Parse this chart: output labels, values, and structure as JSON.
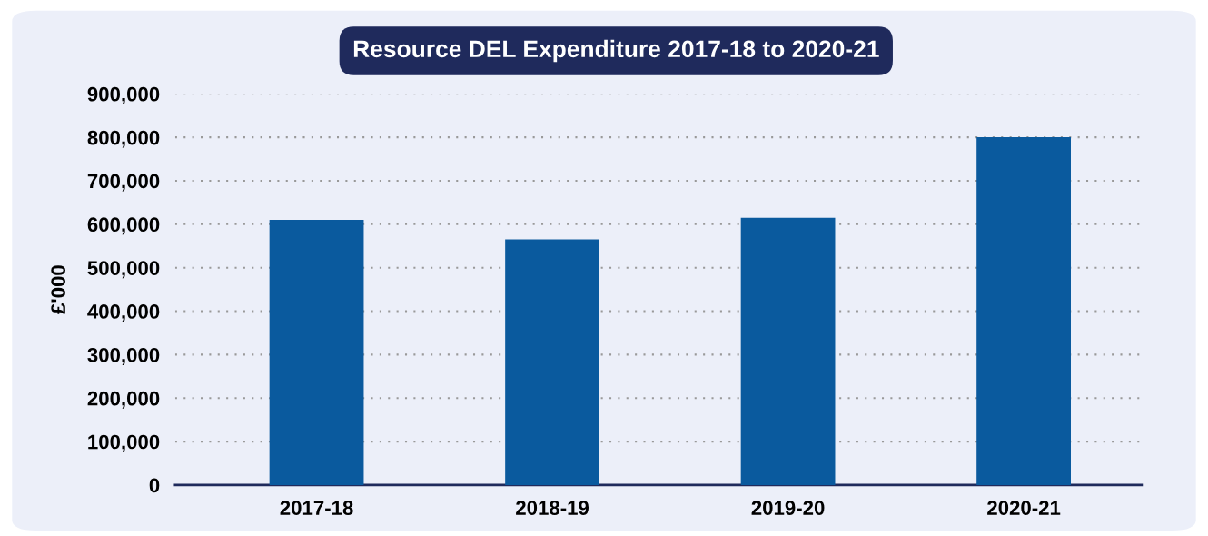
{
  "chart_data": {
    "type": "bar",
    "title": "Resource DEL Expenditure 2017-18 to 2020-21",
    "ylabel": "£'000",
    "categories": [
      "2017-18",
      "2018-19",
      "2019-20",
      "2020-21"
    ],
    "values": [
      610000,
      565000,
      615000,
      800000
    ],
    "color": "#0a5a9e",
    "ylim": [
      0,
      900000
    ],
    "yticks": [
      {
        "value": 0,
        "label": "0"
      },
      {
        "value": 100000,
        "label": "100,000"
      },
      {
        "value": 200000,
        "label": "200,000"
      },
      {
        "value": 300000,
        "label": "300,000"
      },
      {
        "value": 400000,
        "label": "400,000"
      },
      {
        "value": 500000,
        "label": "500,000"
      },
      {
        "value": 600000,
        "label": "600,000"
      },
      {
        "value": 700000,
        "label": "700,000"
      },
      {
        "value": 800000,
        "label": "800,000"
      },
      {
        "value": 900000,
        "label": "900,000"
      }
    ],
    "grid": "y",
    "legend": false
  }
}
